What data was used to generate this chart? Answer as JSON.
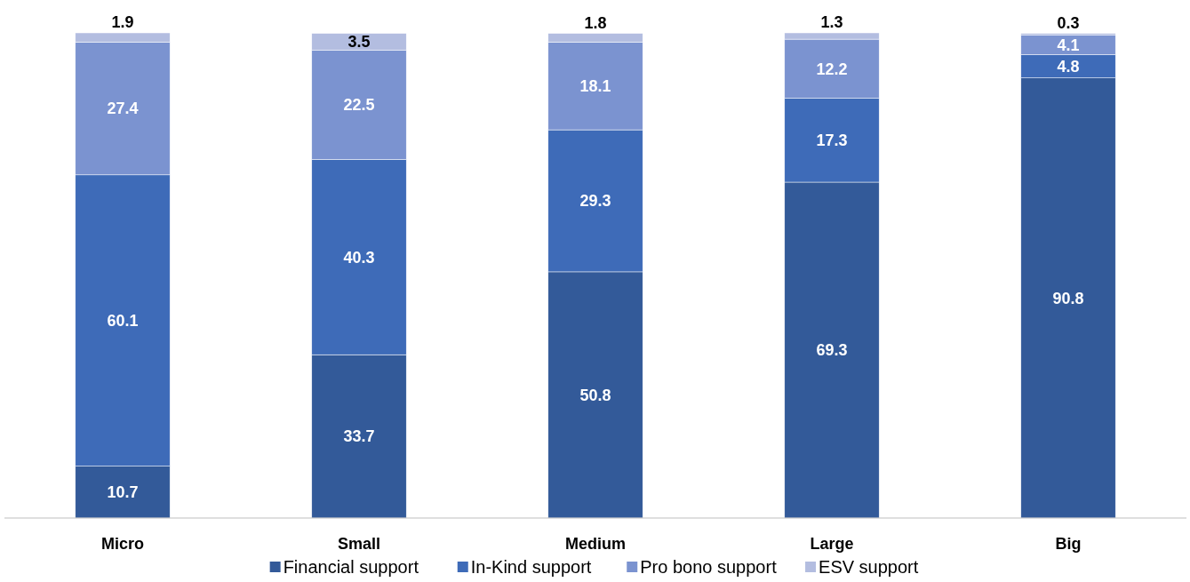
{
  "chart_data": {
    "type": "bar",
    "stacked": true,
    "categories": [
      "Micro",
      "Small",
      "Medium",
      "Large",
      "Big"
    ],
    "series": [
      {
        "name": "Financial support",
        "color": "#335a99",
        "values": [
          10.7,
          33.7,
          50.8,
          69.3,
          90.8
        ]
      },
      {
        "name": "In-Kind support",
        "color": "#3e6bb8",
        "values": [
          60.1,
          40.3,
          29.3,
          17.3,
          4.8
        ]
      },
      {
        "name": "Pro bono support",
        "color": "#7b93d0",
        "values": [
          27.4,
          22.5,
          18.1,
          12.2,
          4.1
        ]
      },
      {
        "name": "ESV support",
        "color": "#b3bde0",
        "values": [
          1.9,
          3.5,
          1.8,
          1.3,
          0.3
        ]
      }
    ],
    "data_labels": true,
    "legend": "bottom"
  }
}
